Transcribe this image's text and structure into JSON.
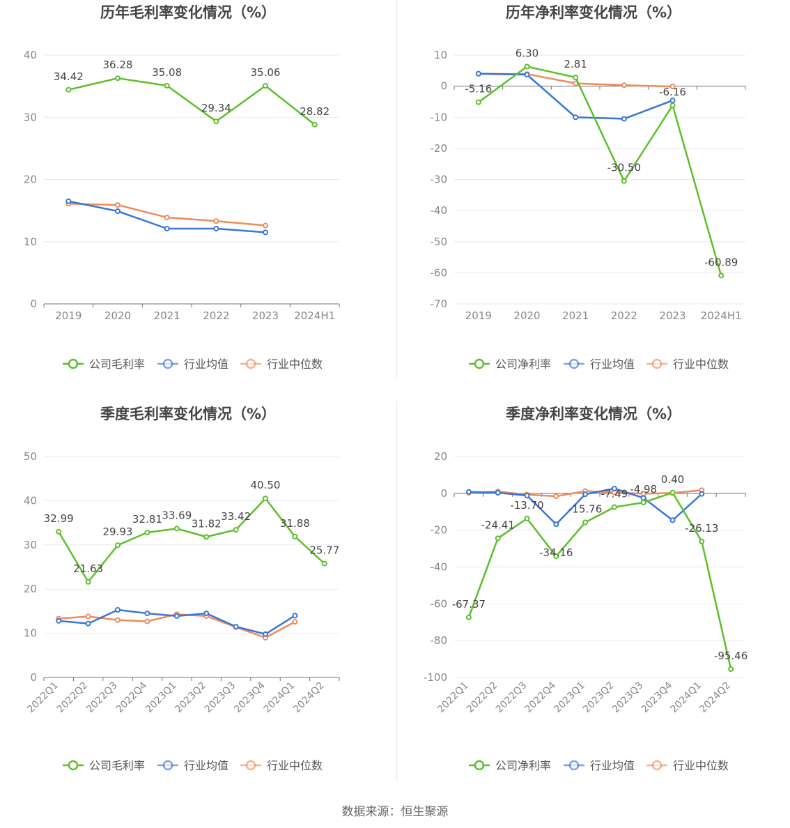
{
  "source_text": "数据来源：恒生聚源",
  "colors": {
    "company": "#5cbf2a",
    "avg": "#3a74d8",
    "median": "#ef8a5a",
    "grid": "#e6e9f0",
    "axis": "#888888",
    "label": "#444444",
    "title": "#444444"
  },
  "chart_data": [
    {
      "type": "line",
      "title": "历年毛利率变化情况（%）",
      "categories": [
        "2019",
        "2020",
        "2021",
        "2022",
        "2023",
        "2024H1"
      ],
      "yticks": [
        0,
        10,
        20,
        30,
        40
      ],
      "ylim": [
        0,
        40
      ],
      "xlabel_rotate": false,
      "legend": [
        "公司毛利率",
        "行业均值",
        "行业中位数"
      ],
      "series": [
        {
          "name": "公司毛利率",
          "values": [
            34.42,
            36.28,
            35.08,
            29.34,
            35.06,
            28.82
          ],
          "labels": [
            "34.42",
            "36.28",
            "35.08",
            "29.34",
            "35.06",
            "28.82"
          ]
        },
        {
          "name": "行业均值",
          "values": [
            16.5,
            14.9,
            12.1,
            12.1,
            11.5,
            null
          ]
        },
        {
          "name": "行业中位数",
          "values": [
            16.1,
            15.9,
            13.9,
            13.3,
            12.6,
            null
          ]
        }
      ]
    },
    {
      "type": "line",
      "title": "历年净利率变化情况（%）",
      "categories": [
        "2019",
        "2020",
        "2021",
        "2022",
        "2023",
        "2024H1"
      ],
      "yticks": [
        -70,
        -60,
        -50,
        -40,
        -30,
        -20,
        -10,
        0,
        10
      ],
      "ylim": [
        -70,
        10
      ],
      "xlabel_rotate": false,
      "legend": [
        "公司净利率",
        "行业均值",
        "行业中位数"
      ],
      "series": [
        {
          "name": "公司净利率",
          "values": [
            -5.16,
            6.3,
            2.81,
            -30.5,
            -6.16,
            -60.89
          ],
          "labels": [
            "-5.16",
            "6.30",
            "2.81",
            "-30.50",
            "-6.16",
            "-60.89"
          ]
        },
        {
          "name": "行业均值",
          "values": [
            4.0,
            3.7,
            -10.0,
            -10.5,
            -4.6,
            null
          ]
        },
        {
          "name": "行业中位数",
          "values": [
            4.0,
            3.9,
            0.9,
            0.3,
            -0.1,
            null
          ]
        }
      ]
    },
    {
      "type": "line",
      "title": "季度毛利率变化情况（%）",
      "categories": [
        "2022Q1",
        "2022Q2",
        "2022Q3",
        "2022Q4",
        "2023Q1",
        "2023Q2",
        "2023Q3",
        "2023Q4",
        "2024Q1",
        "2024Q2"
      ],
      "yticks": [
        0,
        10,
        20,
        30,
        40,
        50
      ],
      "ylim": [
        0,
        50
      ],
      "xlabel_rotate": true,
      "legend": [
        "公司毛利率",
        "行业均值",
        "行业中位数"
      ],
      "series": [
        {
          "name": "公司毛利率",
          "values": [
            32.99,
            21.63,
            29.93,
            32.81,
            33.69,
            31.82,
            33.42,
            40.5,
            31.88,
            25.77
          ],
          "labels": [
            "32.99",
            "21.63",
            "29.93",
            "32.81",
            "33.69",
            "31.82",
            "33.42",
            "40.50",
            "31.88",
            "25.77"
          ]
        },
        {
          "name": "行业均值",
          "values": [
            12.8,
            12.2,
            15.3,
            14.5,
            13.9,
            14.5,
            11.5,
            9.8,
            14.0,
            null
          ]
        },
        {
          "name": "行业中位数",
          "values": [
            13.3,
            13.8,
            13.0,
            12.7,
            14.3,
            13.9,
            11.4,
            9.0,
            12.6,
            null
          ]
        }
      ]
    },
    {
      "type": "line",
      "title": "季度净利率变化情况（%）",
      "categories": [
        "2022Q1",
        "2022Q2",
        "2022Q3",
        "2022Q4",
        "2023Q1",
        "2023Q2",
        "2023Q3",
        "2023Q4",
        "2024Q1",
        "2024Q2"
      ],
      "yticks": [
        -100,
        -80,
        -60,
        -40,
        -20,
        0,
        20
      ],
      "ylim": [
        -100,
        20
      ],
      "xlabel_rotate": true,
      "legend": [
        "公司净利率",
        "行业均值",
        "行业中位数"
      ],
      "series": [
        {
          "name": "公司净利率",
          "values": [
            -67.37,
            -24.41,
            -13.7,
            -34.16,
            -15.76,
            -7.49,
            -4.98,
            0.4,
            -26.13,
            -95.46
          ],
          "labels": [
            "-67.37",
            "-24.41",
            "-13.70",
            "-34.16",
            "-15.76",
            "-7.49",
            "-4.98",
            "0.40",
            "-26.13",
            "-95.46"
          ]
        },
        {
          "name": "行业均值",
          "values": [
            0.8,
            0.3,
            -1.2,
            -16.8,
            -0.5,
            2.6,
            -2.5,
            -14.6,
            -0.3,
            null
          ]
        },
        {
          "name": "行业中位数",
          "values": [
            0.3,
            1.0,
            -0.7,
            -1.6,
            1.2,
            0.5,
            -0.2,
            0.2,
            1.7,
            null
          ]
        }
      ]
    }
  ]
}
